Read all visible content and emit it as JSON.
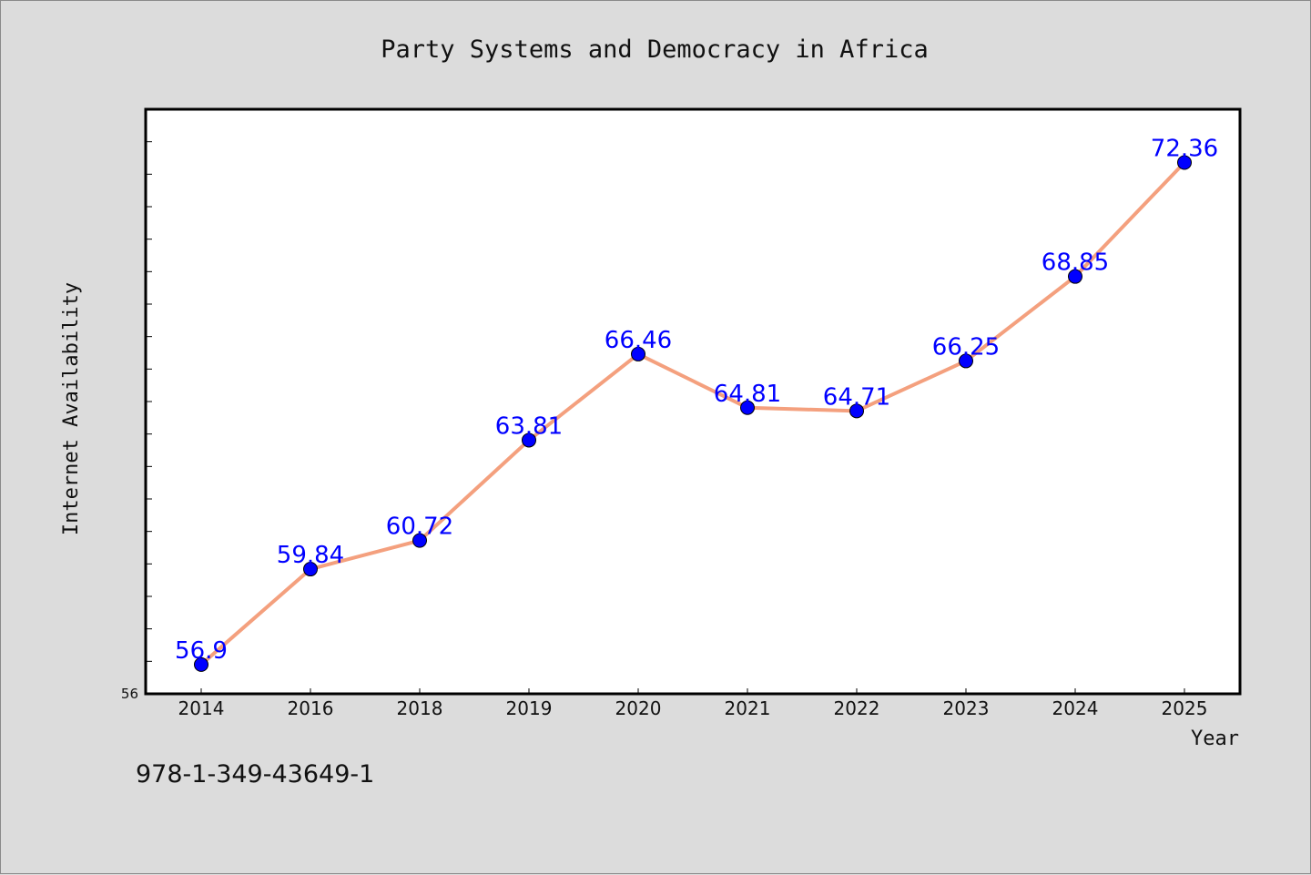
{
  "chart_data": {
    "type": "line",
    "title": "Party Systems and Democracy in Africa",
    "xlabel": "Year",
    "ylabel": "Internet Availability",
    "categories": [
      "2014",
      "2016",
      "2018",
      "2019",
      "2020",
      "2021",
      "2022",
      "2023",
      "2024",
      "2025"
    ],
    "series": [
      {
        "values": [
          56.9,
          59.84,
          60.72,
          63.81,
          66.46,
          64.81,
          64.71,
          66.25,
          68.85,
          72.36
        ],
        "labels": [
          "56.9",
          "59.84",
          "60.72",
          "63.81",
          "66.46",
          "64.81",
          "64.71",
          "66.25",
          "68.85",
          "72.36"
        ]
      }
    ],
    "ylim": [
      56,
      74
    ],
    "y_tick_labels": [
      "56"
    ],
    "grid": false,
    "colors": {
      "line": "#f4a07e",
      "marker": "#0000ff",
      "label": "#0000ff",
      "background": "#dcdcdc",
      "plot_background": "#ffffff"
    }
  },
  "footer_text": "978-1-349-43649-1"
}
